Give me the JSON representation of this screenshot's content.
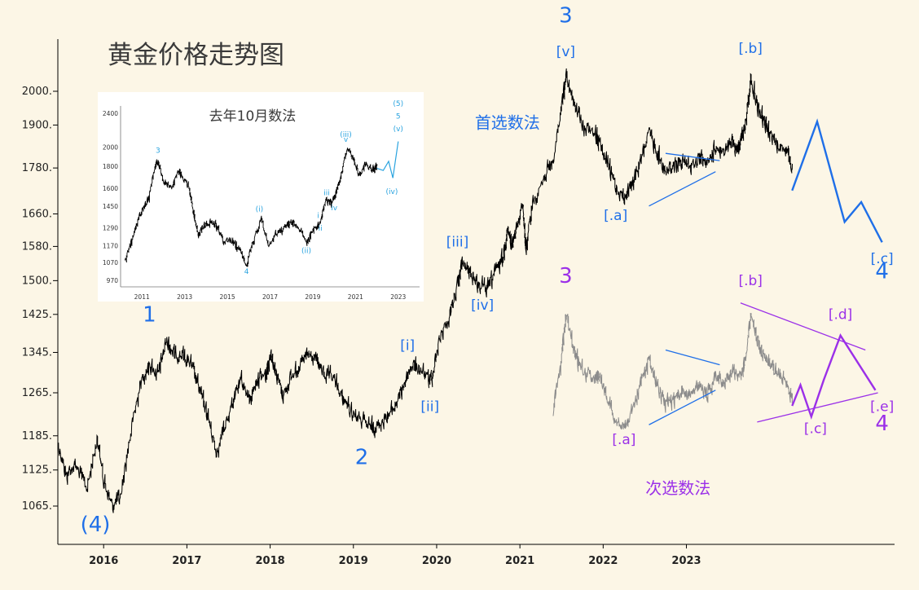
{
  "chart_data": {
    "type": "line",
    "title": "黄金价格走势图",
    "background": "#fcf6e6",
    "colors": {
      "price": "#000000",
      "alt_price": "#8c8c8c",
      "primary": "#1f6fe8",
      "secondary": "#9b30e8",
      "inset_label": "#29a3df"
    },
    "y_axis": {
      "scale": "log",
      "tick_labels": [
        "2000.",
        "1900.",
        "1780.",
        "1660.",
        "1580.",
        "1500.",
        "1425.",
        "1345.",
        "1265.",
        "1185.",
        "1125.",
        "1065."
      ]
    },
    "x_axis": {
      "tick_labels": [
        "2016",
        "2017",
        "2018",
        "2019",
        "2020",
        "2021",
        "2022",
        "2023"
      ]
    },
    "grid": false,
    "series": [
      {
        "name": "",
        "style": "black",
        "points": [
          [
            2015.5,
            1170
          ],
          [
            2015.6,
            1115
          ],
          [
            2015.7,
            1135
          ],
          [
            2015.85,
            1095
          ],
          [
            2015.97,
            1180
          ],
          [
            2016.05,
            1105
          ],
          [
            2016.15,
            1065
          ],
          [
            2016.25,
            1080
          ],
          [
            2016.4,
            1215
          ],
          [
            2016.5,
            1290
          ],
          [
            2016.6,
            1320
          ],
          [
            2016.7,
            1300
          ],
          [
            2016.8,
            1370
          ],
          [
            2016.9,
            1340
          ],
          [
            2017.0,
            1340
          ],
          [
            2017.1,
            1320
          ],
          [
            2017.2,
            1270
          ],
          [
            2017.3,
            1220
          ],
          [
            2017.4,
            1155
          ],
          [
            2017.5,
            1200
          ],
          [
            2017.6,
            1250
          ],
          [
            2017.7,
            1290
          ],
          [
            2017.8,
            1250
          ],
          [
            2017.9,
            1295
          ],
          [
            2018.0,
            1300
          ],
          [
            2018.05,
            1345
          ],
          [
            2018.12,
            1305
          ],
          [
            2018.2,
            1260
          ],
          [
            2018.3,
            1295
          ],
          [
            2018.4,
            1320
          ],
          [
            2018.5,
            1340
          ],
          [
            2018.6,
            1330
          ],
          [
            2018.7,
            1300
          ],
          [
            2018.8,
            1295
          ],
          [
            2018.9,
            1260
          ],
          [
            2019.0,
            1235
          ],
          [
            2019.12,
            1215
          ],
          [
            2019.25,
            1200
          ],
          [
            2019.35,
            1205
          ],
          [
            2019.45,
            1220
          ],
          [
            2019.55,
            1240
          ],
          [
            2019.65,
            1280
          ],
          [
            2019.75,
            1320
          ],
          [
            2019.85,
            1310
          ],
          [
            2019.95,
            1290
          ],
          [
            2020.0,
            1300
          ],
          [
            2020.08,
            1375
          ],
          [
            2020.2,
            1420
          ],
          [
            2020.3,
            1490
          ],
          [
            2020.35,
            1540
          ],
          [
            2020.45,
            1520
          ],
          [
            2020.55,
            1490
          ],
          [
            2020.65,
            1480
          ],
          [
            2020.75,
            1520
          ],
          [
            2020.85,
            1560
          ],
          [
            2020.9,
            1620
          ],
          [
            2020.95,
            1580
          ],
          [
            2021.0,
            1620
          ],
          [
            2021.08,
            1690
          ],
          [
            2021.12,
            1570
          ],
          [
            2021.2,
            1690
          ],
          [
            2021.35,
            1760
          ],
          [
            2021.45,
            1800
          ],
          [
            2021.55,
            1960
          ],
          [
            2021.6,
            2040
          ],
          [
            2021.7,
            1960
          ],
          [
            2021.8,
            1900
          ],
          [
            2021.95,
            1880
          ],
          [
            2022.0,
            1850
          ],
          [
            2022.1,
            1790
          ],
          [
            2022.2,
            1730
          ],
          [
            2022.3,
            1700
          ],
          [
            2022.4,
            1740
          ],
          [
            2022.5,
            1800
          ],
          [
            2022.6,
            1880
          ],
          [
            2022.7,
            1820
          ],
          [
            2022.8,
            1770
          ],
          [
            2022.9,
            1790
          ],
          [
            2023.0,
            1800
          ],
          [
            2023.1,
            1780
          ],
          [
            2023.2,
            1810
          ],
          [
            2023.3,
            1790
          ],
          [
            2023.4,
            1840
          ],
          [
            2023.5,
            1820
          ],
          [
            2023.6,
            1850
          ],
          [
            2023.65,
            1830
          ],
          [
            2023.7,
            1860
          ],
          [
            2023.75,
            1890
          ],
          [
            2023.82,
            2040
          ],
          [
            2023.9,
            1950
          ],
          [
            2023.98,
            1910
          ],
          [
            2024.05,
            1880
          ],
          [
            2024.15,
            1840
          ],
          [
            2024.25,
            1830
          ],
          [
            2024.32,
            1775
          ]
        ]
      },
      {
        "name": "",
        "style": "gray",
        "points": [
          [
            2021.45,
            1230
          ],
          [
            2021.55,
            1340
          ],
          [
            2021.6,
            1430
          ],
          [
            2021.7,
            1345
          ],
          [
            2021.8,
            1310
          ],
          [
            2021.95,
            1295
          ],
          [
            2022.0,
            1300
          ],
          [
            2022.1,
            1255
          ],
          [
            2022.2,
            1215
          ],
          [
            2022.3,
            1200
          ],
          [
            2022.4,
            1230
          ],
          [
            2022.5,
            1290
          ],
          [
            2022.6,
            1330
          ],
          [
            2022.7,
            1280
          ],
          [
            2022.8,
            1245
          ],
          [
            2022.9,
            1255
          ],
          [
            2023.0,
            1270
          ],
          [
            2023.1,
            1260
          ],
          [
            2023.2,
            1280
          ],
          [
            2023.3,
            1265
          ],
          [
            2023.4,
            1300
          ],
          [
            2023.5,
            1285
          ],
          [
            2023.6,
            1310
          ],
          [
            2023.7,
            1300
          ],
          [
            2023.75,
            1320
          ],
          [
            2023.82,
            1420
          ],
          [
            2023.9,
            1370
          ],
          [
            2023.98,
            1340
          ],
          [
            2024.05,
            1320
          ],
          [
            2024.15,
            1300
          ],
          [
            2024.25,
            1290
          ],
          [
            2024.32,
            1245
          ]
        ]
      }
    ],
    "projections": [
      {
        "style": "primary",
        "points": [
          [
            2024.32,
            1720
          ],
          [
            2024.62,
            1910
          ],
          [
            2024.95,
            1640
          ],
          [
            2025.15,
            1690
          ],
          [
            2025.4,
            1590
          ]
        ]
      },
      {
        "style": "secondary",
        "points": [
          [
            2024.32,
            1240
          ],
          [
            2024.42,
            1280
          ],
          [
            2024.55,
            1220
          ],
          [
            2024.7,
            1290
          ],
          [
            2024.9,
            1380
          ],
          [
            2025.32,
            1270
          ]
        ]
      }
    ],
    "trendlines": [
      {
        "style": "primary",
        "points": [
          [
            2022.6,
            1680
          ],
          [
            2023.4,
            1770
          ]
        ]
      },
      {
        "style": "primary",
        "points": [
          [
            2022.8,
            1820
          ],
          [
            2023.45,
            1800
          ]
        ]
      },
      {
        "style": "primary",
        "points": [
          [
            2022.6,
            1205
          ],
          [
            2023.4,
            1270
          ]
        ]
      },
      {
        "style": "primary",
        "points": [
          [
            2022.8,
            1350
          ],
          [
            2023.45,
            1320
          ]
        ]
      },
      {
        "style": "secondary",
        "points": [
          [
            2023.7,
            1450
          ],
          [
            2025.2,
            1350
          ]
        ]
      },
      {
        "style": "secondary",
        "points": [
          [
            2023.9,
            1210
          ],
          [
            2025.35,
            1265
          ]
        ]
      }
    ],
    "wave_labels": [
      {
        "text": "(4)",
        "x": 2015.95,
        "y": 1025,
        "style": "primary",
        "size": "large"
      },
      {
        "text": "1",
        "x": 2016.6,
        "y": 1410,
        "style": "primary",
        "size": "large"
      },
      {
        "text": "2",
        "x": 2019.15,
        "y": 1135,
        "style": "primary",
        "size": "large"
      },
      {
        "text": "3",
        "x": 2021.6,
        "y": 2220,
        "style": "primary",
        "size": "large"
      },
      {
        "text": "[v]",
        "x": 2021.6,
        "y": 2110,
        "style": "primary",
        "size": "small"
      },
      {
        "text": "[i]",
        "x": 2019.7,
        "y": 1350,
        "style": "primary",
        "size": "small"
      },
      {
        "text": "[ii]",
        "x": 2019.97,
        "y": 1230,
        "style": "primary",
        "size": "small"
      },
      {
        "text": "[iii]",
        "x": 2020.3,
        "y": 1580,
        "style": "primary",
        "size": "small"
      },
      {
        "text": "[iv]",
        "x": 2020.6,
        "y": 1435,
        "style": "primary",
        "size": "small"
      },
      {
        "text": "[.a]",
        "x": 2022.2,
        "y": 1645,
        "style": "primary",
        "size": "small"
      },
      {
        "text": "[.b]",
        "x": 2023.82,
        "y": 2120,
        "style": "primary",
        "size": "small"
      },
      {
        "text": "[.c]",
        "x": 2025.4,
        "y": 1540,
        "style": "primary",
        "size": "small"
      },
      {
        "text": "4",
        "x": 2025.4,
        "y": 1505,
        "style": "primary",
        "size": "large"
      },
      {
        "text": "首选数法",
        "x": 2020.9,
        "y": 1890,
        "style": "primary",
        "size": "note"
      },
      {
        "text": "3",
        "x": 2021.6,
        "y": 1495,
        "style": "secondary",
        "size": "large"
      },
      {
        "text": "[.b]",
        "x": 2023.82,
        "y": 1490,
        "style": "secondary",
        "size": "small"
      },
      {
        "text": "[.a]",
        "x": 2022.3,
        "y": 1170,
        "style": "secondary",
        "size": "small"
      },
      {
        "text": "[.c]",
        "x": 2024.6,
        "y": 1190,
        "style": "secondary",
        "size": "small"
      },
      {
        "text": "[.d]",
        "x": 2024.9,
        "y": 1415,
        "style": "secondary",
        "size": "small"
      },
      {
        "text": "[.e]",
        "x": 2025.4,
        "y": 1230,
        "style": "secondary",
        "size": "small"
      },
      {
        "text": "4",
        "x": 2025.4,
        "y": 1195,
        "style": "secondary",
        "size": "large"
      },
      {
        "text": "次选数法",
        "x": 2022.95,
        "y": 1085,
        "style": "secondary",
        "size": "note"
      }
    ],
    "inset": {
      "title": "去年10月数法",
      "y_tick_labels": [
        "2400",
        "2000",
        "1800",
        "1600",
        "1450",
        "1290",
        "1170",
        "1070",
        "970"
      ],
      "x_tick_labels": [
        "2011",
        "2013",
        "2015",
        "2017",
        "2019",
        "2021",
        "2023"
      ],
      "series": [
        [
          2010.2,
          1080
        ],
        [
          2010.5,
          1200
        ],
        [
          2010.9,
          1380
        ],
        [
          2011.3,
          1500
        ],
        [
          2011.6,
          1800
        ],
        [
          2011.75,
          1850
        ],
        [
          2012.0,
          1650
        ],
        [
          2012.4,
          1600
        ],
        [
          2012.7,
          1750
        ],
        [
          2012.9,
          1700
        ],
        [
          2013.2,
          1600
        ],
        [
          2013.4,
          1400
        ],
        [
          2013.6,
          1250
        ],
        [
          2013.9,
          1300
        ],
        [
          2014.2,
          1330
        ],
        [
          2014.5,
          1300
        ],
        [
          2014.8,
          1200
        ],
        [
          2015.2,
          1210
        ],
        [
          2015.5,
          1150
        ],
        [
          2015.9,
          1060
        ],
        [
          2016.2,
          1200
        ],
        [
          2016.6,
          1350
        ],
        [
          2016.9,
          1170
        ],
        [
          2017.3,
          1250
        ],
        [
          2017.7,
          1300
        ],
        [
          2018.0,
          1330
        ],
        [
          2018.3,
          1300
        ],
        [
          2018.7,
          1190
        ],
        [
          2019.0,
          1280
        ],
        [
          2019.3,
          1300
        ],
        [
          2019.6,
          1500
        ],
        [
          2019.9,
          1480
        ],
        [
          2020.1,
          1570
        ],
        [
          2020.3,
          1700
        ],
        [
          2020.6,
          1980
        ],
        [
          2020.9,
          1860
        ],
        [
          2021.2,
          1700
        ],
        [
          2021.5,
          1830
        ],
        [
          2021.8,
          1760
        ],
        [
          2022.0,
          1800
        ]
      ],
      "projection": [
        [
          2022.0,
          1780
        ],
        [
          2022.3,
          1760
        ],
        [
          2022.55,
          1850
        ],
        [
          2022.75,
          1690
        ],
        [
          2023.0,
          2060
        ]
      ],
      "labels": [
        {
          "text": "3",
          "x": 2011.75,
          "y": 1935
        },
        {
          "text": "4",
          "x": 2015.9,
          "y": 1005
        },
        {
          "text": "(i)",
          "x": 2016.5,
          "y": 1410
        },
        {
          "text": "(ii)",
          "x": 2018.7,
          "y": 1125
        },
        {
          "text": "i",
          "x": 2019.25,
          "y": 1360
        },
        {
          "text": "ii",
          "x": 2019.35,
          "y": 1270
        },
        {
          "text": "iii",
          "x": 2019.65,
          "y": 1540
        },
        {
          "text": "iv",
          "x": 2020.0,
          "y": 1420
        },
        {
          "text": "(iii)",
          "x": 2020.55,
          "y": 2110
        },
        {
          "text": "v",
          "x": 2020.55,
          "y": 2055
        },
        {
          "text": "(iv)",
          "x": 2022.7,
          "y": 1550
        },
        {
          "text": "(5)",
          "x": 2023.0,
          "y": 2500
        },
        {
          "text": "5",
          "x": 2023.0,
          "y": 2330
        },
        {
          "text": "(v)",
          "x": 2023.0,
          "y": 2180
        }
      ]
    }
  }
}
